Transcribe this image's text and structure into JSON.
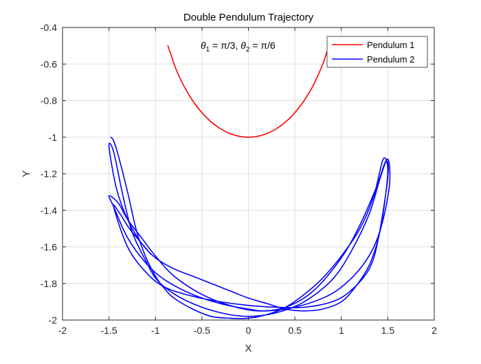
{
  "chart_data": {
    "type": "line",
    "title": "Double Pendulum Trajectory",
    "xlabel": "X",
    "ylabel": "Y",
    "xlim": [
      -2,
      2
    ],
    "ylim": [
      -2,
      -0.4
    ],
    "xticks": [
      -2,
      -1.5,
      -1,
      -0.5,
      0,
      0.5,
      1,
      1.5,
      2
    ],
    "yticks": [
      -2,
      -1.8,
      -1.6,
      -1.4,
      -1.2,
      -1,
      -0.8,
      -0.6,
      -0.4
    ],
    "xtick_labels": [
      "-2",
      "-1.5",
      "-1",
      "-0.5",
      "0",
      "0.5",
      "1",
      "1.5",
      "2"
    ],
    "ytick_labels": [
      "-2",
      "-1.8",
      "-1.6",
      "-1.4",
      "-1.2",
      "-1",
      "-0.8",
      "-0.6",
      "-0.4"
    ],
    "grid": true,
    "legend_position": "top-right",
    "annotation": {
      "theta1_symbol": "θ",
      "theta1_sub": "1",
      "theta1_value": " = π/3, ",
      "theta2_symbol": "θ",
      "theta2_sub": "2",
      "theta2_value": " = π/6"
    },
    "series": [
      {
        "name": "Pendulum 1",
        "color": "#ff0000",
        "x": [
          -0.866,
          -0.78,
          -0.7,
          -0.6,
          -0.5,
          -0.4,
          -0.3,
          -0.2,
          -0.1,
          0,
          0.1,
          0.2,
          0.3,
          0.4,
          0.5,
          0.6,
          0.7,
          0.8,
          0.866
        ],
        "y": [
          -0.5,
          -0.626,
          -0.714,
          -0.8,
          -0.866,
          -0.917,
          -0.954,
          -0.98,
          -0.995,
          -1.0,
          -0.995,
          -0.98,
          -0.954,
          -0.917,
          -0.866,
          -0.8,
          -0.714,
          -0.6,
          -0.5
        ]
      },
      {
        "name": "Pendulum 2",
        "color": "#0000ff",
        "x": [
          -1.48,
          -1.45,
          -1.4,
          -1.3,
          -1.2,
          -1.1,
          -1.0,
          -0.9,
          -0.8,
          -0.6,
          -0.4,
          -0.2,
          0,
          0.2,
          0.4,
          0.6,
          0.8,
          1.0,
          1.2,
          1.35,
          1.45,
          1.5,
          1.46,
          1.4,
          1.3,
          1.15,
          1.0,
          0.8,
          0.6,
          0.4,
          0.2,
          0,
          -0.2,
          -0.4,
          -0.6,
          -0.8,
          -1.0,
          -1.15,
          -1.3,
          -1.42,
          -1.5,
          -1.45,
          -1.35,
          -1.25,
          -1.1,
          -1.0,
          -0.85,
          -0.6,
          -0.3,
          0,
          0.3,
          0.6,
          0.9,
          1.1,
          1.3,
          1.42,
          1.5,
          1.52,
          1.45,
          1.35,
          1.2,
          1.0,
          0.8,
          0.5,
          0.2,
          0,
          -0.3,
          -0.6,
          -0.9,
          -1.1,
          -1.3,
          -1.45,
          -1.5,
          -1.4,
          -1.3,
          -1.15,
          -1.0,
          -0.8,
          -0.5,
          -0.2,
          0.1,
          0.4,
          0.7,
          1.0,
          1.2,
          1.38,
          1.48,
          1.5,
          1.4,
          1.3,
          1.1,
          0.9,
          0.6,
          0.3,
          0,
          -0.3,
          -0.6,
          -0.9,
          -1.1,
          -1.3,
          -1.45,
          -1.38,
          -1.28,
          -1.15,
          -1.05
        ],
        "y": [
          -1.0,
          -1.02,
          -1.1,
          -1.3,
          -1.52,
          -1.66,
          -1.76,
          -1.83,
          -1.88,
          -1.94,
          -1.98,
          -1.99,
          -1.99,
          -1.97,
          -1.93,
          -1.86,
          -1.77,
          -1.65,
          -1.5,
          -1.32,
          -1.12,
          -1.18,
          -1.38,
          -1.55,
          -1.7,
          -1.82,
          -1.9,
          -1.94,
          -1.95,
          -1.94,
          -1.91,
          -1.88,
          -1.84,
          -1.8,
          -1.76,
          -1.72,
          -1.66,
          -1.58,
          -1.45,
          -1.28,
          -1.05,
          -1.08,
          -1.32,
          -1.52,
          -1.68,
          -1.77,
          -1.84,
          -1.91,
          -1.96,
          -1.98,
          -1.96,
          -1.9,
          -1.78,
          -1.63,
          -1.42,
          -1.22,
          -1.12,
          -1.25,
          -1.45,
          -1.6,
          -1.72,
          -1.82,
          -1.88,
          -1.93,
          -1.95,
          -1.94,
          -1.91,
          -1.86,
          -1.78,
          -1.69,
          -1.55,
          -1.38,
          -1.32,
          -1.36,
          -1.45,
          -1.55,
          -1.65,
          -1.76,
          -1.86,
          -1.92,
          -1.95,
          -1.93,
          -1.84,
          -1.66,
          -1.48,
          -1.27,
          -1.13,
          -1.22,
          -1.55,
          -1.72,
          -1.84,
          -1.9,
          -1.93,
          -1.93,
          -1.92,
          -1.9,
          -1.87,
          -1.82,
          -1.74,
          -1.6,
          -1.38,
          -1.42,
          -1.5,
          -1.58,
          -1.64
        ]
      }
    ]
  }
}
